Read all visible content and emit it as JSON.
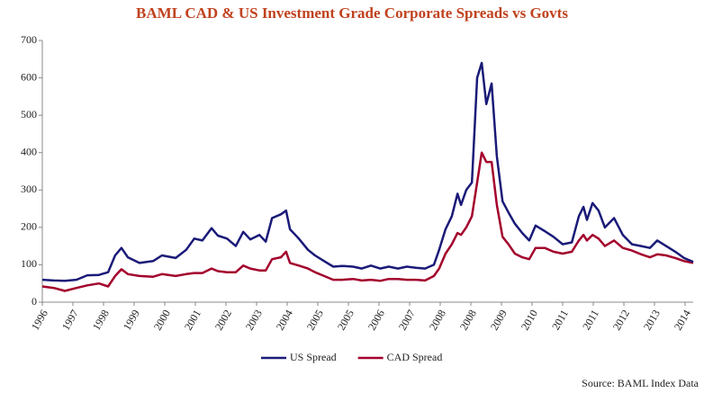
{
  "chart_data": {
    "type": "line",
    "title": "BAML CAD & US Investment Grade Corporate Spreads vs Govts",
    "source": "Source: BAML Index Data",
    "x": [
      1996.0,
      1996.33,
      1996.64,
      1996.97,
      1997.28,
      1997.61,
      1997.87,
      1998.07,
      1998.25,
      1998.43,
      1998.76,
      1999.15,
      1999.4,
      1999.79,
      2000.09,
      2000.32,
      2000.55,
      2000.81,
      2000.99,
      2001.25,
      2001.5,
      2001.71,
      2001.91,
      2002.17,
      2002.35,
      2002.53,
      2002.78,
      2002.93,
      2003.04,
      2003.29,
      2003.55,
      2003.75,
      2004.01,
      2004.27,
      2004.52,
      2004.83,
      2005.08,
      2005.34,
      2005.6,
      2005.85,
      2006.11,
      2006.36,
      2006.62,
      2006.88,
      2007.13,
      2007.28,
      2007.46,
      2007.64,
      2007.8,
      2007.9,
      2008.05,
      2008.21,
      2008.36,
      2008.49,
      2008.62,
      2008.77,
      2008.92,
      2009.08,
      2009.25,
      2009.43,
      2009.64,
      2009.84,
      2010.02,
      2010.28,
      2010.53,
      2010.79,
      2011.05,
      2011.25,
      2011.38,
      2011.48,
      2011.64,
      2011.81,
      2011.99,
      2012.25,
      2012.5,
      2012.76,
      2013.02,
      2013.27,
      2013.48,
      2013.73,
      2013.99,
      2014.24,
      2014.5
    ],
    "series": [
      {
        "name": "US Spread",
        "color": "#1a1a78",
        "values": [
          60,
          58,
          57,
          60,
          72,
          73,
          80,
          125,
          145,
          120,
          105,
          110,
          125,
          118,
          140,
          170,
          165,
          198,
          178,
          170,
          150,
          188,
          168,
          180,
          162,
          225,
          235,
          245,
          195,
          170,
          140,
          125,
          110,
          95,
          97,
          95,
          90,
          98,
          90,
          95,
          90,
          95,
          92,
          90,
          100,
          140,
          195,
          230,
          290,
          260,
          300,
          320,
          600,
          640,
          530,
          585,
          390,
          270,
          240,
          210,
          185,
          165,
          205,
          190,
          175,
          155,
          160,
          230,
          255,
          220,
          265,
          245,
          200,
          225,
          180,
          155,
          150,
          145,
          165,
          150,
          135,
          118,
          108
        ]
      },
      {
        "name": "CAD Spread",
        "color": "#a3002c",
        "values": [
          42,
          38,
          30,
          38,
          45,
          50,
          42,
          70,
          88,
          75,
          70,
          68,
          75,
          70,
          75,
          78,
          78,
          90,
          83,
          80,
          80,
          98,
          90,
          85,
          85,
          115,
          120,
          135,
          105,
          98,
          90,
          80,
          70,
          60,
          60,
          62,
          58,
          60,
          57,
          62,
          62,
          60,
          60,
          58,
          70,
          90,
          130,
          155,
          185,
          180,
          200,
          230,
          320,
          400,
          375,
          375,
          260,
          175,
          155,
          130,
          120,
          115,
          145,
          145,
          135,
          130,
          135,
          165,
          180,
          165,
          180,
          170,
          150,
          165,
          145,
          138,
          128,
          120,
          128,
          125,
          118,
          110,
          105
        ]
      }
    ],
    "xlim": [
      1996,
      2014.5
    ],
    "xticks": [
      {
        "value": 1996.0,
        "label": "1996"
      },
      {
        "value": 1996.87,
        "label": "1997"
      },
      {
        "value": 1997.74,
        "label": "1998"
      },
      {
        "value": 1998.61,
        "label": "1999"
      },
      {
        "value": 1999.48,
        "label": "2000"
      },
      {
        "value": 2000.35,
        "label": "2001"
      },
      {
        "value": 2001.22,
        "label": "2002"
      },
      {
        "value": 2002.09,
        "label": "2003"
      },
      {
        "value": 2002.96,
        "label": "2004"
      },
      {
        "value": 2003.83,
        "label": "2005"
      },
      {
        "value": 2004.7,
        "label": "2005"
      },
      {
        "value": 2005.57,
        "label": "2006"
      },
      {
        "value": 2006.44,
        "label": "2007"
      },
      {
        "value": 2007.31,
        "label": "2008"
      },
      {
        "value": 2008.18,
        "label": "2008"
      },
      {
        "value": 2009.05,
        "label": "2009"
      },
      {
        "value": 2009.92,
        "label": "2010"
      },
      {
        "value": 2010.79,
        "label": "2011"
      },
      {
        "value": 2011.66,
        "label": "2011"
      },
      {
        "value": 2012.53,
        "label": "2012"
      },
      {
        "value": 2013.4,
        "label": "2013"
      },
      {
        "value": 2014.27,
        "label": "2014"
      }
    ],
    "ylim": [
      0,
      700
    ],
    "yticks": [
      0,
      100,
      200,
      300,
      400,
      500,
      600,
      700
    ],
    "grid": false,
    "legend": "bottom"
  }
}
